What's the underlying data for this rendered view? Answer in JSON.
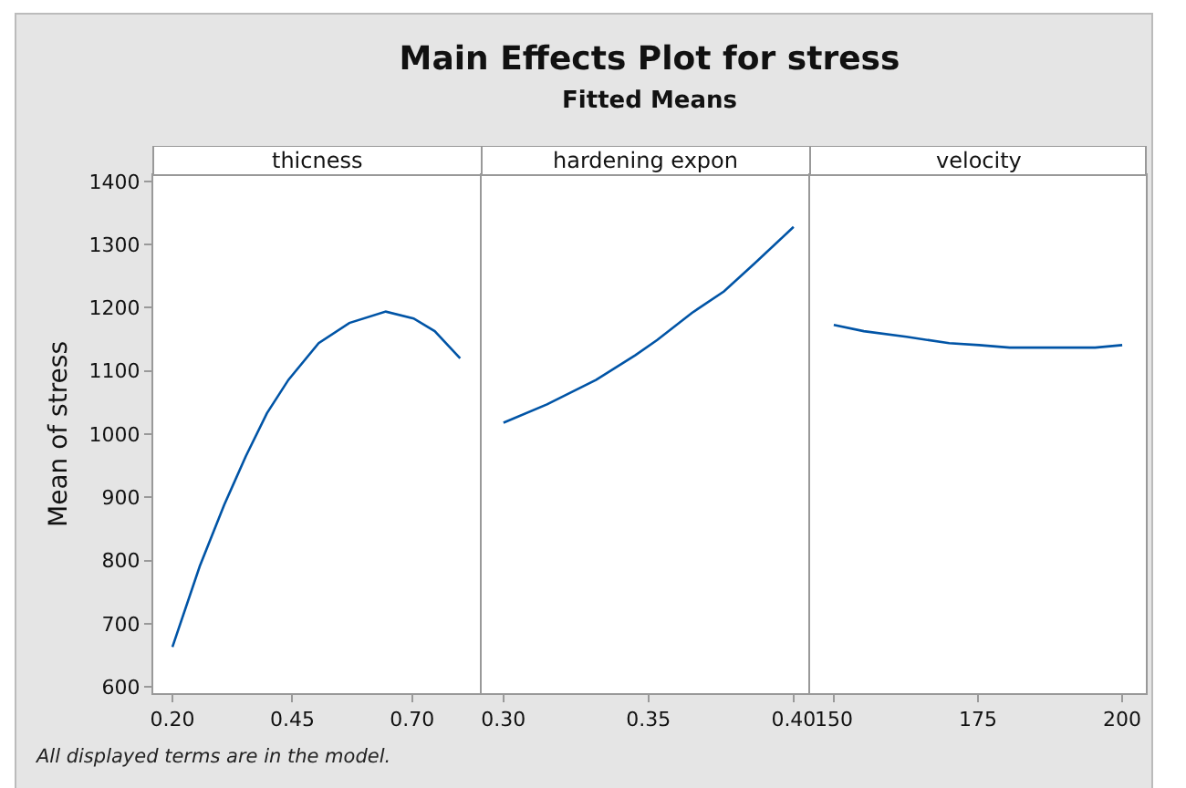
{
  "chart_data": [
    {
      "type": "line",
      "xlabel": "thicness",
      "ylabel": "Mean of stress",
      "annotations": [
        "All displayed terms are in the model."
      ],
      "color": "#0054a6",
      "x": [
        0.2,
        0.257,
        0.308,
        0.353,
        0.397,
        0.442,
        0.505,
        0.569,
        0.645,
        0.703,
        0.747,
        0.8
      ],
      "values": [
        663,
        791,
        888,
        965,
        1033,
        1086,
        1144,
        1176,
        1194,
        1183,
        1163,
        1120
      ],
      "xlim": [
        0.16,
        0.845
      ],
      "xticks": [
        {
          "value": 0.2,
          "label": "0.20"
        },
        {
          "value": 0.45,
          "label": "0.45"
        },
        {
          "value": 0.7,
          "label": "0.70"
        }
      ],
      "ylim": [
        590,
        1410
      ],
      "yticks": [
        600,
        700,
        800,
        900,
        1000,
        1100,
        1200,
        1300,
        1400
      ]
    },
    {
      "type": "line",
      "title": "Main Effects Plot for stress",
      "subtitle": "Fitted Means",
      "xlabel": "hardening expon",
      "color": "#0054a6",
      "x": [
        0.3,
        0.315,
        0.332,
        0.3455,
        0.353,
        0.365,
        0.376,
        0.3865,
        0.4
      ],
      "values": [
        1018,
        1047,
        1086,
        1125,
        1149,
        1192,
        1226,
        1270,
        1328
      ],
      "xlim": [
        0.2925,
        0.4057
      ],
      "xticks": [
        {
          "value": 0.3,
          "label": "0.30"
        },
        {
          "value": 0.35,
          "label": "0.35"
        },
        {
          "value": 0.4,
          "label": "0.40"
        }
      ],
      "ylim": [
        590,
        1410
      ],
      "yticks": [
        600,
        700,
        800,
        900,
        1000,
        1100,
        1200,
        1300,
        1400
      ],
      "tick_labels": "x"
    },
    {
      "type": "line",
      "xlabel": "velocity",
      "color": "#0054a6",
      "x": [
        150,
        155.2,
        162.6,
        170,
        175.2,
        180.5,
        195.3,
        200
      ],
      "values": [
        1173,
        1163,
        1154,
        1144,
        1141,
        1137,
        1137,
        1141
      ],
      "xlim": [
        145.9,
        204.1
      ],
      "xticks": [
        150,
        175,
        200
      ],
      "ylim": [
        590,
        1410
      ],
      "yticks": [
        600,
        700,
        800,
        900,
        1000,
        1100,
        1200,
        1300,
        1400
      ],
      "tick_labels": "x"
    }
  ]
}
